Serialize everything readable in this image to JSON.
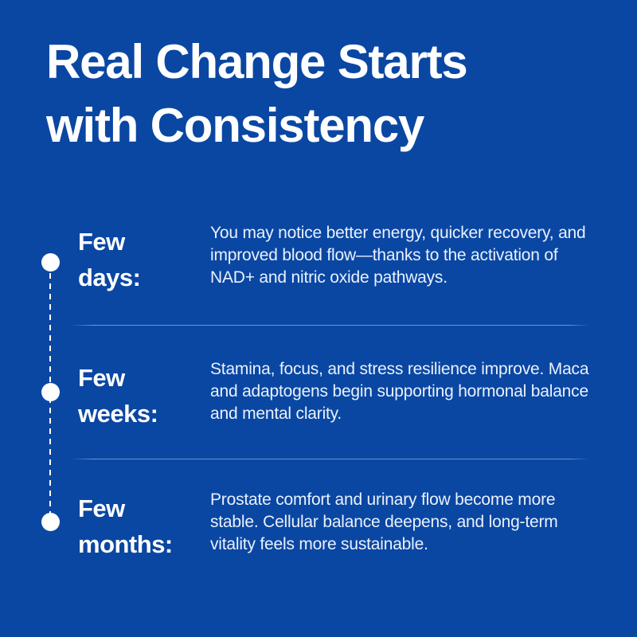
{
  "page": {
    "title": "Real Change Starts with Consistency"
  },
  "timeline": {
    "rows": [
      {
        "label": "Few days:",
        "description": "You may notice better energy, quicker recovery, and improved blood flow—thanks to the activation of NAD+ and nitric oxide pathways."
      },
      {
        "label": "Few weeks:",
        "description": "Stamina, focus, and stress resilience improve. Maca and adaptogens begin supporting hormonal balance and mental clarity."
      },
      {
        "label": "Few months:",
        "description": "Prostate comfort and urinary flow become more stable. Cellular balance deepens, and long-term vitality feels more sustainable."
      }
    ],
    "marker_icon": "circle-dot",
    "connector_style": "dashed-vertical-line"
  },
  "colors": {
    "background": "#0a47a3",
    "title_text": "#ffffff",
    "heading_text": "#ffffff",
    "body_text": "#eaf1fc",
    "marker": "#ffffff",
    "divider": "rgba(255,255,255,0.42)"
  }
}
